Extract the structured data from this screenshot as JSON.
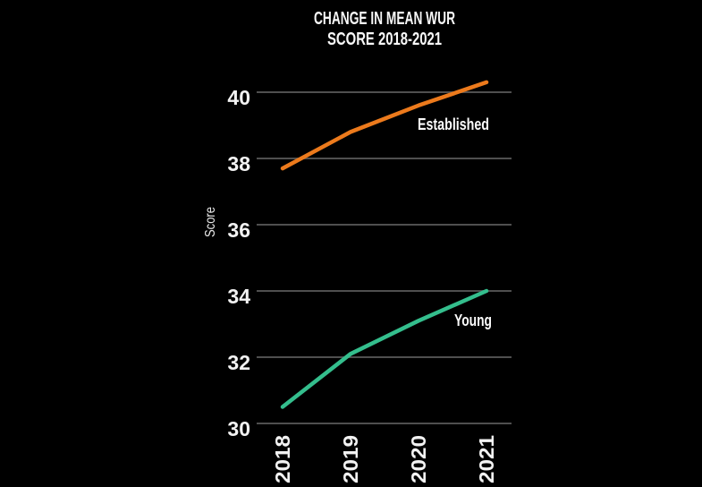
{
  "title": {
    "line1": "CHANGE IN MEAN WUR",
    "line2": "SCORE 2018-2021"
  },
  "colors": {
    "background": "#000000",
    "grid": "#4f4f4f",
    "text": "#f2f2f2",
    "established": "#ec7a1c",
    "young": "#34be8d"
  },
  "chart_data": {
    "type": "line",
    "title": "CHANGE IN MEAN WUR SCORE 2018-2021",
    "x": [
      "2018",
      "2019",
      "2020",
      "2021"
    ],
    "series": [
      {
        "name": "Established",
        "values": [
          37.7,
          38.8,
          39.6,
          40.3
        ],
        "color_key": "established"
      },
      {
        "name": "Young",
        "values": [
          30.5,
          32.1,
          33.1,
          34.0
        ],
        "color_key": "young"
      }
    ],
    "xlabel": "",
    "ylabel": "Score",
    "yticks": [
      30,
      32,
      34,
      36,
      38,
      40
    ],
    "ylim": [
      30,
      40
    ],
    "grid": "horizontal",
    "legend": "inline-labels"
  }
}
